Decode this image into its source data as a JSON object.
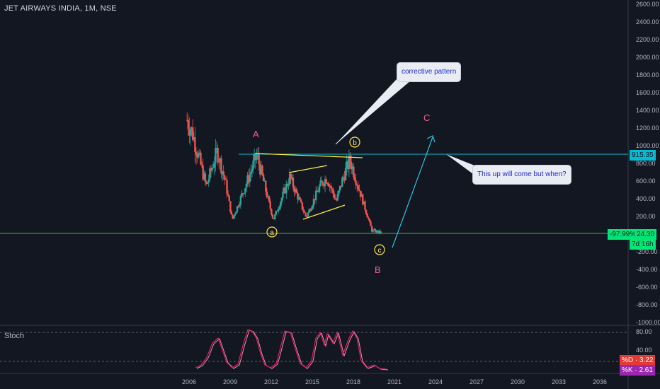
{
  "title": "JET AIRWAYS INDIA, 1M, NSE",
  "stoch_label": "Stoch",
  "price_axis": {
    "ticks": [
      "2600.00",
      "2400.00",
      "2200.00",
      "2000.00",
      "1800.00",
      "1600.00",
      "1400.00",
      "1200.00",
      "1000.00",
      "800.00",
      "600.00",
      "400.00",
      "200.00",
      "0.00",
      "-200.00",
      "-400.00",
      "-600.00",
      "-800.00",
      "-1000.00"
    ]
  },
  "stoch_axis": {
    "ticks": [
      "80.00",
      "40.00"
    ]
  },
  "time_axis": {
    "ticks": [
      "2006",
      "2009",
      "2012",
      "2015",
      "2018",
      "2021",
      "2024",
      "2027",
      "2030",
      "2033",
      "2036"
    ]
  },
  "tags": {
    "resistance": "915.35",
    "current_pct": "-97.99%",
    "current_price": "24.30",
    "countdown": "7d 16h",
    "stoch_d": "%D · 3.22",
    "stoch_k": "%K · 2.61"
  },
  "labels": {
    "A": "A",
    "B": "B",
    "C": "C",
    "a": "a",
    "b": "b",
    "c": "c",
    "callout_top": "corrective pattern",
    "callout_right": "This up will come but when?"
  },
  "colors": {
    "background": "#131722",
    "up_candle": "#26a69a",
    "down_candle": "#ef5350",
    "resistance_line": "#00bcd4",
    "current_line": "#4caf50",
    "trendline": "#ffeb3b",
    "wave_label_pink": "#f06292",
    "stoch": "#e91e63"
  },
  "chart_data": {
    "type": "candlestick",
    "title": "JET AIRWAYS INDIA, 1M, NSE",
    "ylim": [
      -1000,
      2600
    ],
    "xlim": [
      2005,
      2037
    ],
    "approx_close_path": [
      {
        "x": 2005.8,
        "y": 1300
      },
      {
        "x": 2006.2,
        "y": 1150
      },
      {
        "x": 2006.7,
        "y": 850
      },
      {
        "x": 2007.2,
        "y": 550
      },
      {
        "x": 2008.0,
        "y": 950
      },
      {
        "x": 2008.6,
        "y": 600
      },
      {
        "x": 2009.1,
        "y": 170
      },
      {
        "x": 2010.3,
        "y": 650
      },
      {
        "x": 2010.9,
        "y": 900
      },
      {
        "x": 2011.8,
        "y": 350
      },
      {
        "x": 2012.1,
        "y": 170
      },
      {
        "x": 2013.3,
        "y": 650
      },
      {
        "x": 2014.5,
        "y": 200
      },
      {
        "x": 2015.5,
        "y": 550
      },
      {
        "x": 2016.0,
        "y": 650
      },
      {
        "x": 2016.7,
        "y": 380
      },
      {
        "x": 2017.2,
        "y": 650
      },
      {
        "x": 2017.7,
        "y": 850
      },
      {
        "x": 2018.8,
        "y": 300
      },
      {
        "x": 2019.3,
        "y": 50
      },
      {
        "x": 2020.0,
        "y": 24.3
      }
    ],
    "resistance": 915.35,
    "last_price": 24.3,
    "change_pct": -97.99,
    "stochastic": {
      "k": 2.61,
      "d": 3.22,
      "levels": [
        80,
        40
      ]
    }
  }
}
